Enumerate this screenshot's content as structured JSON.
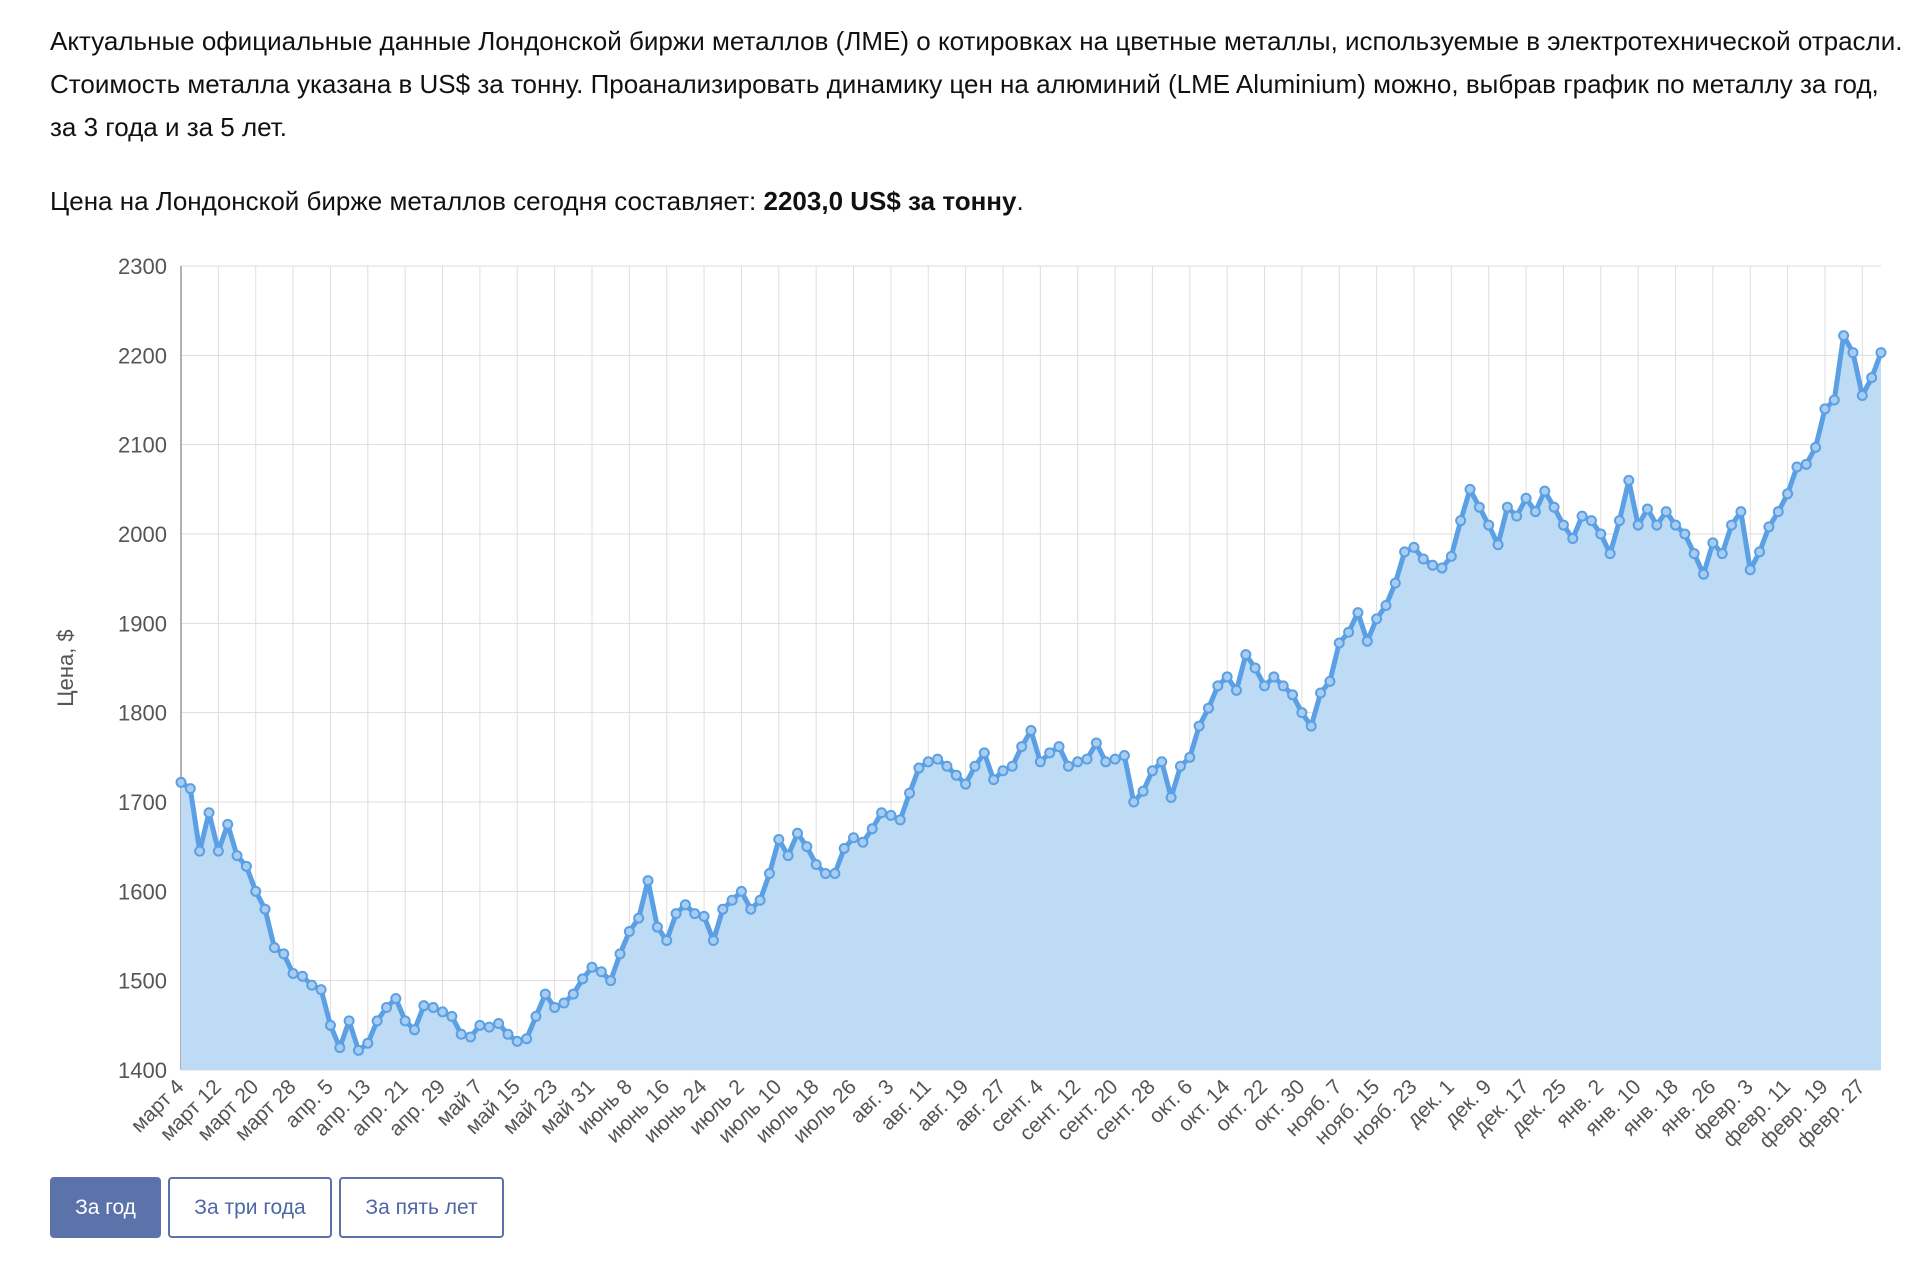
{
  "intro": "Актуальные официальные данные Лондонской биржи металлов (ЛМЕ) о котировках на цветные металлы, используемые в электротехнической отрасли. Стоимость металла указана в US$ за тонну. Проанализировать динамику цен на алюминий (LME Aluminium) можно, выбрав график по металлу за год, за 3 года и за 5 лет.",
  "price_prefix": "Цена на Лондонской бирже металлов сегодня составляет: ",
  "price_value": "2203,0 US$ за тонну",
  "price_suffix": ".",
  "buttons": [
    "За год",
    "За три года",
    "За пять лет"
  ],
  "chart_data": {
    "type": "area",
    "y_label": "Цена, $",
    "color": "#5ba0e4",
    "fill": "#bddbf5",
    "grid": true,
    "ylim": [
      1400,
      2300
    ],
    "yticks": [
      1400,
      1500,
      1600,
      1700,
      1800,
      1900,
      2000,
      2100,
      2200,
      2300
    ],
    "categories": [
      "март 4",
      null,
      null,
      null,
      "март 12",
      null,
      null,
      null,
      "март 20",
      null,
      null,
      null,
      "март 28",
      null,
      null,
      null,
      "апр. 5",
      null,
      null,
      null,
      "апр. 13",
      null,
      null,
      null,
      "апр. 21",
      null,
      null,
      null,
      "апр. 29",
      null,
      null,
      null,
      "май 7",
      null,
      null,
      null,
      "май 15",
      null,
      null,
      null,
      "май 23",
      null,
      null,
      null,
      "май 31",
      null,
      null,
      null,
      "июнь 8",
      null,
      null,
      null,
      "июнь 16",
      null,
      null,
      null,
      "июнь 24",
      null,
      null,
      null,
      "июль 2",
      null,
      null,
      null,
      "июль 10",
      null,
      null,
      null,
      "июль 18",
      null,
      null,
      null,
      "июль 26",
      null,
      null,
      null,
      "авг. 3",
      null,
      null,
      null,
      "авг. 11",
      null,
      null,
      null,
      "авг. 19",
      null,
      null,
      null,
      "авг. 27",
      null,
      null,
      null,
      "сент. 4",
      null,
      null,
      null,
      "сент. 12",
      null,
      null,
      null,
      "сент. 20",
      null,
      null,
      null,
      "сент. 28",
      null,
      null,
      null,
      "окт. 6",
      null,
      null,
      null,
      "окт. 14",
      null,
      null,
      null,
      "окт. 22",
      null,
      null,
      null,
      "окт. 30",
      null,
      null,
      null,
      "нояб. 7",
      null,
      null,
      null,
      "нояб. 15",
      null,
      null,
      null,
      "нояб. 23",
      null,
      null,
      null,
      "дек. 1",
      null,
      null,
      null,
      "дек. 9",
      null,
      null,
      null,
      "дек. 17",
      null,
      null,
      null,
      "дек. 25",
      null,
      null,
      null,
      "янв. 2",
      null,
      null,
      null,
      "янв. 10",
      null,
      null,
      null,
      "янв. 18",
      null,
      null,
      null,
      "янв. 26",
      null,
      null,
      null,
      "февр. 3",
      null,
      null,
      null,
      "февр. 11",
      null,
      null,
      null,
      "февр. 19",
      null,
      null,
      null,
      "февр. 27",
      null,
      null
    ],
    "values": [
      1722,
      1715,
      1645,
      1688,
      1645,
      1675,
      1640,
      1628,
      1600,
      1580,
      1537,
      1530,
      1508,
      1505,
      1495,
      1490,
      1450,
      1425,
      1455,
      1422,
      1430,
      1455,
      1470,
      1480,
      1455,
      1445,
      1472,
      1470,
      1465,
      1460,
      1440,
      1437,
      1450,
      1448,
      1452,
      1440,
      1432,
      1435,
      1460,
      1485,
      1470,
      1475,
      1485,
      1502,
      1515,
      1510,
      1500,
      1530,
      1555,
      1570,
      1612,
      1560,
      1545,
      1575,
      1585,
      1575,
      1572,
      1545,
      1580,
      1590,
      1600,
      1580,
      1590,
      1620,
      1658,
      1640,
      1665,
      1650,
      1630,
      1620,
      1620,
      1648,
      1660,
      1655,
      1670,
      1688,
      1685,
      1680,
      1710,
      1738,
      1745,
      1748,
      1740,
      1730,
      1720,
      1740,
      1755,
      1725,
      1735,
      1740,
      1762,
      1780,
      1745,
      1755,
      1762,
      1740,
      1745,
      1748,
      1766,
      1745,
      1748,
      1752,
      1700,
      1712,
      1735,
      1745,
      1705,
      1740,
      1750,
      1785,
      1805,
      1830,
      1840,
      1825,
      1865,
      1850,
      1830,
      1840,
      1830,
      1820,
      1800,
      1785,
      1822,
      1835,
      1878,
      1890,
      1912,
      1880,
      1905,
      1920,
      1945,
      1980,
      1985,
      1972,
      1965,
      1962,
      1975,
      2015,
      2050,
      2030,
      2010,
      1988,
      2030,
      2020,
      2040,
      2025,
      2048,
      2030,
      2010,
      1995,
      2020,
      2015,
      2000,
      1978,
      2015,
      2060,
      2010,
      2028,
      2010,
      2025,
      2010,
      2000,
      1978,
      1955,
      1990,
      1978,
      2010,
      2025,
      1960,
      1980,
      2008,
      2025,
      2045,
      2075,
      2078,
      2097,
      2140,
      2150,
      2222,
      2203,
      2155,
      2175,
      2203
    ]
  }
}
